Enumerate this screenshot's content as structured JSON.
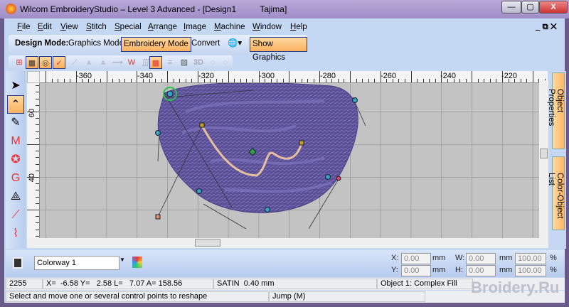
{
  "window": {
    "title": "Wilcom EmbroideryStudio – Level 3 Advanced - [Design1          Tajima]",
    "minimize": "—",
    "maximize": "▢",
    "close": "X",
    "doc_controls": "_ ⧉ ✕"
  },
  "menu": [
    "File",
    "Edit",
    "View",
    "Stitch",
    "Special",
    "Arrange",
    "Image",
    "Machine",
    "Window",
    "Help"
  ],
  "mode_bar": {
    "label": "Design Mode:",
    "graphics_mode": "Graphics Mode",
    "embroidery_mode": "Embroidery Mode",
    "convert": "Convert",
    "globe": "🌐▾",
    "show_graphics": "Show Graphics"
  },
  "icon_bar": [
    "⊞",
    "▦",
    "◎",
    "✓",
    "⟋",
    "⩓",
    "⩓",
    "⟿",
    "W",
    "∭",
    "▩",
    "≡",
    "▨",
    "3D",
    "◌",
    "◌"
  ],
  "left_tools": [
    "select-icon",
    "reshape-icon",
    "knife-icon",
    "stitch-icon",
    "fill-icon",
    "appliqué-icon",
    "outline-icon",
    "run-icon",
    "polyline-icon"
  ],
  "rulers": {
    "horizontal": [
      "-360",
      "-340",
      "-320",
      "-300",
      "-280",
      "-260",
      "-240",
      "-220"
    ],
    "vertical": [
      "60",
      "40"
    ]
  },
  "accent": "#fbb060",
  "thread_color": "#5a4f95",
  "right_tabs": [
    "Object Properties",
    "Color-Object List"
  ],
  "bottom": {
    "colorway": "Colorway 1",
    "x_label": "X:",
    "x": "0.00",
    "y_label": "Y:",
    "y": "0.00",
    "w_label": "W:",
    "w": "0.00",
    "h_label": "H:",
    "h": "0.00",
    "unit": "mm",
    "w_pct": "100.00",
    "h_pct": "100.00",
    "pct": "%"
  },
  "status": {
    "stitch_count": "2255",
    "coords": "X=  -6.58 Y=   2.58 L=   7.07 A= 158.56",
    "stitch_type": "SATIN  0.40 mm",
    "object": "Object 1: Complex Fill",
    "hint": "Select and move one or several control points to reshape",
    "jump": "Jump (M)"
  },
  "watermark": "Broidery.Ru"
}
